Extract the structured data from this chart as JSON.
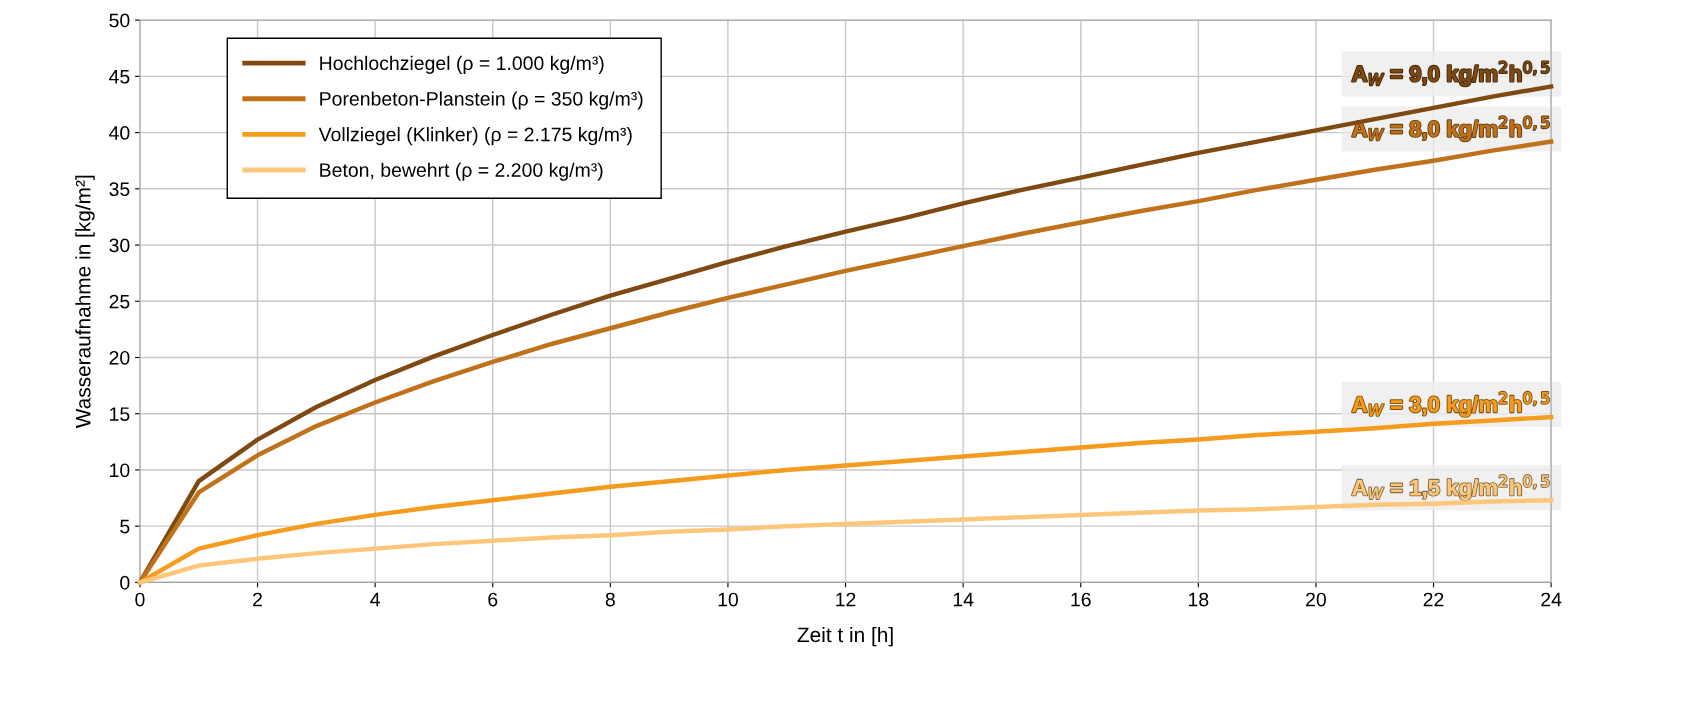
{
  "chart_data": {
    "type": "line",
    "xlabel": "Zeit t in [h]",
    "ylabel": "Wasseraufnahme in [kg/m²]",
    "x": [
      0,
      1,
      2,
      3,
      4,
      5,
      6,
      7,
      8,
      9,
      10,
      11,
      12,
      13,
      14,
      15,
      16,
      17,
      18,
      19,
      20,
      21,
      22,
      23,
      24
    ],
    "series": [
      {
        "name": "Hochlochziegel (ρ = 1.000 kg/m³)",
        "color": "#7f4a12",
        "values": [
          0,
          9,
          12.7,
          15.6,
          18,
          20.1,
          22.0,
          23.8,
          25.5,
          27,
          28.5,
          29.9,
          31.2,
          32.4,
          33.7,
          34.9,
          36,
          37.1,
          38.2,
          39.2,
          40.2,
          41.2,
          42.2,
          43.2,
          44.1
        ]
      },
      {
        "name": "Porenbeton-Planstein (ρ = 350 kg/m³)",
        "color": "#c0721a",
        "values": [
          0,
          8,
          11.3,
          13.9,
          16,
          17.9,
          19.6,
          21.2,
          22.6,
          24,
          25.3,
          26.5,
          27.7,
          28.8,
          29.9,
          31.0,
          32,
          33.0,
          33.9,
          34.9,
          35.8,
          36.7,
          37.5,
          38.4,
          39.2
        ]
      },
      {
        "name": "Vollziegel (Klinker) (ρ = 2.175 kg/m³)",
        "color": "#f59b1e",
        "values": [
          0,
          3,
          4.2,
          5.2,
          6,
          6.7,
          7.3,
          7.9,
          8.5,
          9,
          9.5,
          10.0,
          10.4,
          10.8,
          11.2,
          11.6,
          12,
          12.4,
          12.7,
          13.1,
          13.4,
          13.7,
          14.1,
          14.4,
          14.7
        ]
      },
      {
        "name": "Beton, bewehrt (ρ = 2.200 kg/m³)",
        "color": "#fcc77a",
        "values": [
          0,
          1.5,
          2.1,
          2.6,
          3,
          3.4,
          3.7,
          4.0,
          4.2,
          4.5,
          4.7,
          5.0,
          5.2,
          5.4,
          5.6,
          5.8,
          6,
          6.2,
          6.4,
          6.5,
          6.7,
          6.9,
          7.0,
          7.2,
          7.3
        ]
      }
    ],
    "annotations": [
      "A$_{W}$ = 9,0 kg/m$^{2}$h$^{0,5}$",
      "A$_{W}$ = 8,0 kg/m$^{2}$h$^{0,5}$",
      "A$_{W}$ = 3,0 kg/m$^{2}$h$^{0,5}$",
      "A$_{W}$ = 1,5 kg/m$^{2}$h$^{0,5}$"
    ],
    "xlim": [
      0,
      24
    ],
    "xticks": [
      0,
      2,
      4,
      6,
      8,
      10,
      12,
      14,
      16,
      18,
      20,
      22,
      24
    ],
    "ylim": [
      0,
      50
    ],
    "yticks": [
      0,
      5,
      10,
      15,
      20,
      25,
      30,
      35,
      40,
      45,
      50
    ],
    "grid": true,
    "legend": "top left",
    "marker": "none",
    "line_style": "solid"
  }
}
